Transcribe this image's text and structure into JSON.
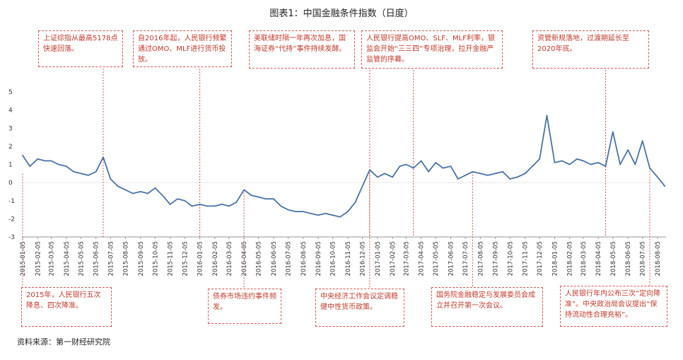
{
  "chart_data": {
    "type": "line",
    "title": "图表1：中国金融条件指数（日度）",
    "ylim": [
      -3,
      5
    ],
    "yticks": [
      -3,
      -2,
      -1,
      0,
      1,
      2,
      3,
      4,
      5
    ],
    "grid": false,
    "xlabel": "",
    "ylabel": "",
    "x_tick_labels": [
      "2015-01-05",
      "2015-02-05",
      "2015-03-05",
      "2015-04-05",
      "2015-05-05",
      "2015-06-05",
      "2015-07-05",
      "2015-08-05",
      "2015-09-05",
      "2015-10-05",
      "2015-11-05",
      "2015-12-05",
      "2016-01-05",
      "2016-02-05",
      "2016-03-05",
      "2016-04-05",
      "2016-05-05",
      "2016-06-05",
      "2016-07-05",
      "2016-08-05",
      "2016-09-05",
      "2016-10-05",
      "2016-11-05",
      "2016-12-05",
      "2017-01-05",
      "2017-02-05",
      "2017-03-05",
      "2017-04-05",
      "2017-05-05",
      "2017-06-05",
      "2017-07-05",
      "2017-08-05",
      "2017-09-05",
      "2017-10-05",
      "2017-11-05",
      "2017-12-05",
      "2018-01-05",
      "2018-02-05",
      "2018-03-05",
      "2018-04-05",
      "2018-05-05",
      "2018-06-05",
      "2018-07-05",
      "2018-08-05"
    ],
    "series": [
      {
        "color": "#4a72a8",
        "x": [
          "2015-01-05",
          "2015-01-20",
          "2015-02-05",
          "2015-02-20",
          "2015-03-05",
          "2015-03-20",
          "2015-04-05",
          "2015-04-20",
          "2015-05-05",
          "2015-05-20",
          "2015-06-05",
          "2015-06-20",
          "2015-07-05",
          "2015-07-20",
          "2015-08-05",
          "2015-08-20",
          "2015-09-05",
          "2015-09-20",
          "2015-10-05",
          "2015-10-20",
          "2015-11-05",
          "2015-11-20",
          "2015-12-05",
          "2015-12-20",
          "2016-01-05",
          "2016-01-20",
          "2016-02-05",
          "2016-02-20",
          "2016-03-05",
          "2016-03-20",
          "2016-04-05",
          "2016-04-20",
          "2016-05-05",
          "2016-05-20",
          "2016-06-05",
          "2016-06-20",
          "2016-07-05",
          "2016-07-20",
          "2016-08-05",
          "2016-08-20",
          "2016-09-05",
          "2016-09-20",
          "2016-10-05",
          "2016-10-20",
          "2016-11-05",
          "2016-11-20",
          "2016-12-05",
          "2016-12-20",
          "2017-01-05",
          "2017-01-20",
          "2017-02-05",
          "2017-02-20",
          "2017-03-05",
          "2017-03-20",
          "2017-04-05",
          "2017-04-20",
          "2017-05-05",
          "2017-05-20",
          "2017-06-05",
          "2017-06-20",
          "2017-07-05",
          "2017-07-20",
          "2017-08-05",
          "2017-08-20",
          "2017-09-05",
          "2017-09-20",
          "2017-10-05",
          "2017-10-20",
          "2017-11-05",
          "2017-11-20",
          "2017-12-05",
          "2017-12-20",
          "2018-01-05",
          "2018-01-20",
          "2018-02-05",
          "2018-02-20",
          "2018-03-05",
          "2018-03-20",
          "2018-04-05",
          "2018-04-20",
          "2018-05-05",
          "2018-05-20",
          "2018-06-05",
          "2018-06-20",
          "2018-07-05",
          "2018-07-20",
          "2018-08-05",
          "2018-08-20"
        ],
        "values": [
          1.5,
          0.9,
          1.3,
          1.2,
          1.2,
          1.0,
          0.9,
          0.6,
          0.5,
          0.4,
          0.6,
          1.4,
          0.2,
          -0.2,
          -0.4,
          -0.6,
          -0.5,
          -0.6,
          -0.3,
          -0.7,
          -1.2,
          -0.9,
          -1.0,
          -1.3,
          -1.2,
          -1.3,
          -1.3,
          -1.2,
          -1.3,
          -1.1,
          -0.4,
          -0.7,
          -0.8,
          -0.9,
          -0.9,
          -1.3,
          -1.5,
          -1.6,
          -1.6,
          -1.7,
          -1.8,
          -1.7,
          -1.8,
          -1.9,
          -1.6,
          -1.1,
          -0.2,
          0.7,
          0.3,
          0.5,
          0.3,
          0.9,
          1.0,
          0.8,
          1.2,
          0.6,
          1.1,
          0.8,
          0.9,
          0.2,
          0.4,
          0.6,
          0.5,
          0.4,
          0.5,
          0.6,
          0.2,
          0.3,
          0.5,
          0.9,
          1.3,
          3.7,
          1.1,
          1.2,
          1.0,
          1.3,
          1.2,
          1.0,
          1.1,
          0.9,
          2.8,
          1.0,
          1.8,
          1.0,
          2.3,
          0.8,
          0.3,
          -0.2
        ]
      }
    ],
    "annotations": {
      "top": [
        "上证综指从最高5178点快速回落。",
        "自2016年起，人民银行频繁通过OMO、MLF进行货币投放。",
        "美联储时隔一年再次加息，国海证券“代持”事件持续发酵。",
        "人民银行提高OMO、SLF、MLF利率，银监会开始“三三四”专项治理，拉开金融严监管的序幕。",
        "资管新规落地，过渡期延长至2020年底。"
      ],
      "bottom": [
        "2015年，人民银行五次降息、四次降准。",
        "债券市场违约事件频发。",
        "中央经济工作会议定调稳健中性货币政策。",
        "国务院金融稳定与发展委员会成立并召开第一次会议。",
        "人民银行年内公布三次“定向降准”。中央政治局会议提出“保持流动性合理充裕”。"
      ]
    }
  },
  "source": "资料来源：第一财经研究院"
}
